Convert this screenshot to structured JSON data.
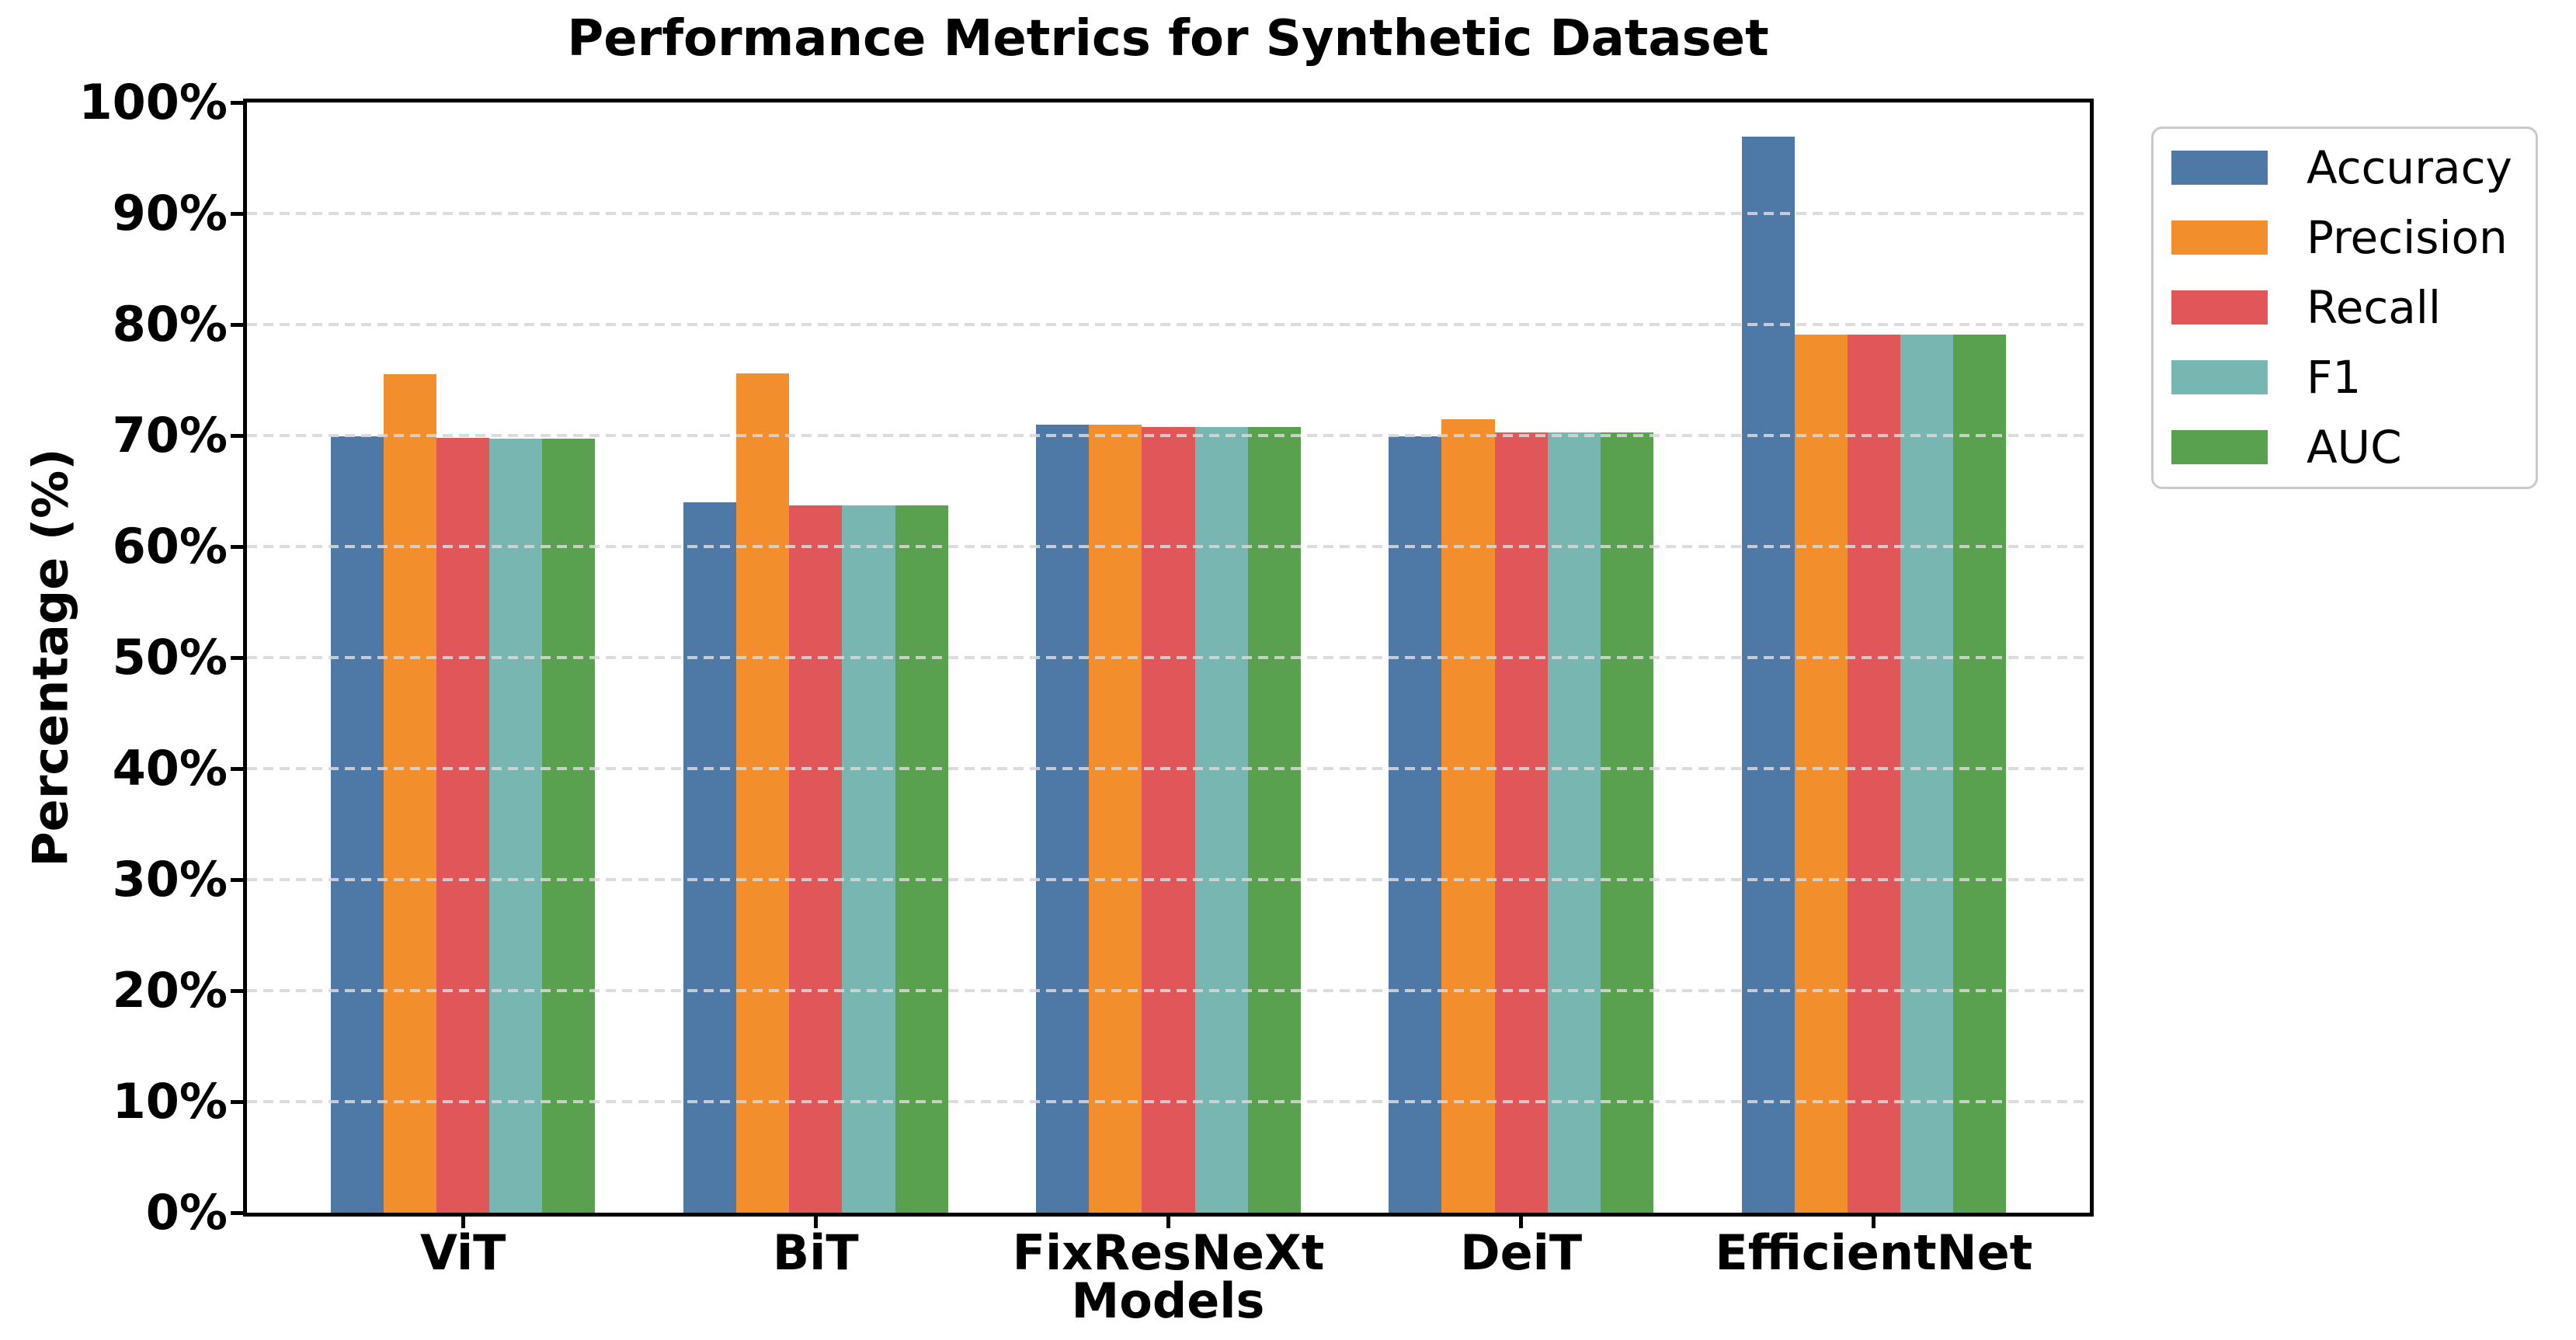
{
  "figure": {
    "background": "#ffffff",
    "axis_color": "#000000",
    "grid_color": "#d7d7d7",
    "legend_border_color": "#c9c9c9"
  },
  "chart_data": {
    "type": "bar",
    "title": "Performance Metrics for Synthetic Dataset",
    "xlabel": "Models",
    "ylabel": "Percentage (%)",
    "categories": [
      "ViT",
      "BiT",
      "FixResNeXt",
      "DeiT",
      "EfficientNet"
    ],
    "series": [
      {
        "name": "Accuracy",
        "color": "#4E79A7",
        "values": [
          69.9,
          64.0,
          71.0,
          69.9,
          96.9
        ]
      },
      {
        "name": "Precision",
        "color": "#F28E2B",
        "values": [
          75.5,
          75.6,
          71.0,
          71.5,
          79.1
        ]
      },
      {
        "name": "Recall",
        "color": "#E15759",
        "values": [
          69.8,
          63.7,
          70.8,
          70.3,
          79.1
        ]
      },
      {
        "name": "F1",
        "color": "#78B7B1",
        "values": [
          69.7,
          63.7,
          70.8,
          70.3,
          79.1
        ]
      },
      {
        "name": "AUC",
        "color": "#59A14F",
        "values": [
          69.7,
          63.7,
          70.8,
          70.3,
          79.1
        ]
      }
    ],
    "ylim": [
      0,
      100
    ],
    "ytick_step": 10,
    "ytick_labels": [
      "0%",
      "10%",
      "20%",
      "30%",
      "40%",
      "50%",
      "60%",
      "70%",
      "80%",
      "90%",
      "100%"
    ],
    "grid": "horizontal-dashed",
    "legend_position": "outside-right",
    "legend_entries": [
      "Accuracy",
      "Precision",
      "Recall",
      "F1",
      "AUC"
    ],
    "bar_width_fraction": 0.15
  }
}
